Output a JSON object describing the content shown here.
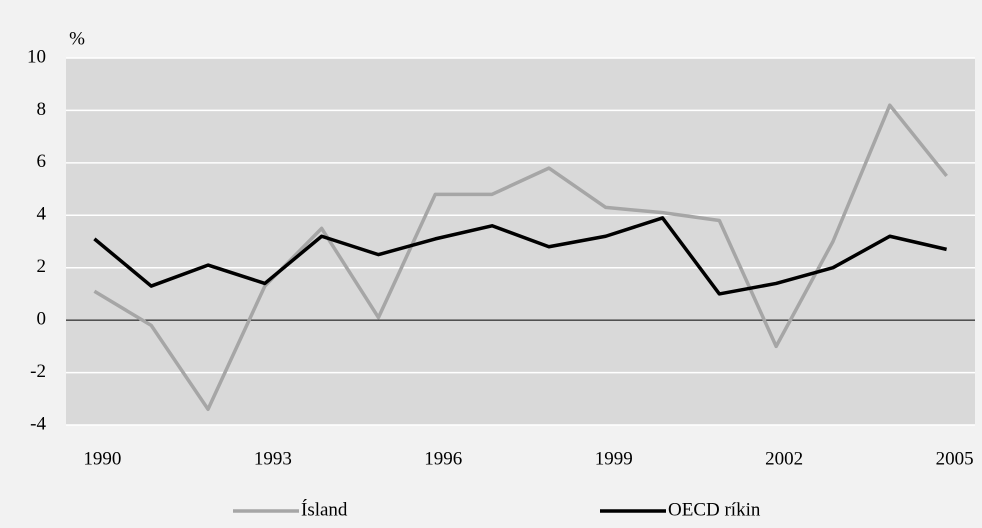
{
  "chart_data": {
    "type": "line",
    "y_label": "%",
    "x": [
      1990,
      1991,
      1992,
      1993,
      1994,
      1995,
      1996,
      1997,
      1998,
      1999,
      2000,
      2001,
      2002,
      2003,
      2004,
      2005
    ],
    "xlim": [
      1989.5,
      2005.5
    ],
    "xticks": [
      1990,
      1993,
      1996,
      1999,
      2002,
      2005
    ],
    "ylim": [
      -4,
      10
    ],
    "yticks": [
      -4,
      -2,
      0,
      2,
      4,
      6,
      8,
      10
    ],
    "grid": true,
    "legend": "bottom",
    "series": [
      {
        "name": "Ísland",
        "color": "#a6a6a6",
        "values": [
          1.1,
          -0.2,
          -3.4,
          1.3,
          3.5,
          0.1,
          4.8,
          4.8,
          5.8,
          4.3,
          4.1,
          3.8,
          -1.0,
          3.0,
          8.2,
          5.5
        ]
      },
      {
        "name": "OECD ríkin",
        "color": "#000000",
        "values": [
          3.1,
          1.3,
          2.1,
          1.4,
          3.2,
          2.5,
          3.1,
          3.6,
          2.8,
          3.2,
          3.9,
          1.0,
          1.4,
          2.0,
          3.2,
          2.7
        ]
      }
    ]
  }
}
